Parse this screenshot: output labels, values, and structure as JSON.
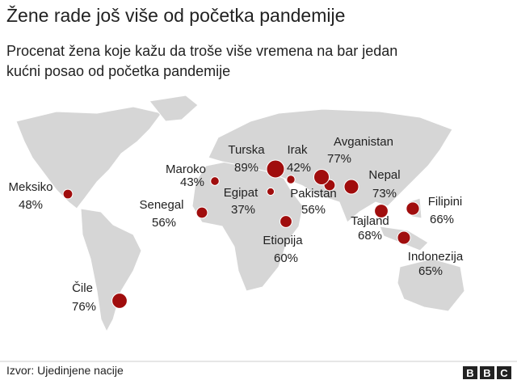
{
  "title": "Žene rade još više od početka pandemije",
  "subtitle": [
    "Procenat žena koje kažu da troše više vremena na bar jedan",
    "kućni posao od početka pandemije"
  ],
  "map": {
    "type": "bubble-map",
    "points": [
      {
        "name": "Meksiko",
        "value": 48,
        "value_label": "48%"
      },
      {
        "name": "Čile",
        "value": 76,
        "value_label": "76%"
      },
      {
        "name": "Senegal",
        "value": 56,
        "value_label": "56%"
      },
      {
        "name": "Maroko",
        "value": 43,
        "value_label": "43%"
      },
      {
        "name": "Turska",
        "value": 89,
        "value_label": "89%"
      },
      {
        "name": "Egipat",
        "value": 37,
        "value_label": "37%"
      },
      {
        "name": "Irak",
        "value": 42,
        "value_label": "42%"
      },
      {
        "name": "Etiopija",
        "value": 60,
        "value_label": "60%"
      },
      {
        "name": "Pakistan",
        "value": 56,
        "value_label": "56%"
      },
      {
        "name": "Avganistan",
        "value": 77,
        "value_label": "77%"
      },
      {
        "name": "Nepal",
        "value": 73,
        "value_label": "73%"
      },
      {
        "name": "Filipini",
        "value": 66,
        "value_label": "66%"
      },
      {
        "name": "Tajland",
        "value": 68,
        "value_label": "68%"
      },
      {
        "name": "Indonezija",
        "value": 65,
        "value_label": "65%"
      }
    ],
    "color": "#a00d0d"
  },
  "source": "Izvor: Ujedinjene nacije",
  "logo": [
    "B",
    "B",
    "C"
  ]
}
